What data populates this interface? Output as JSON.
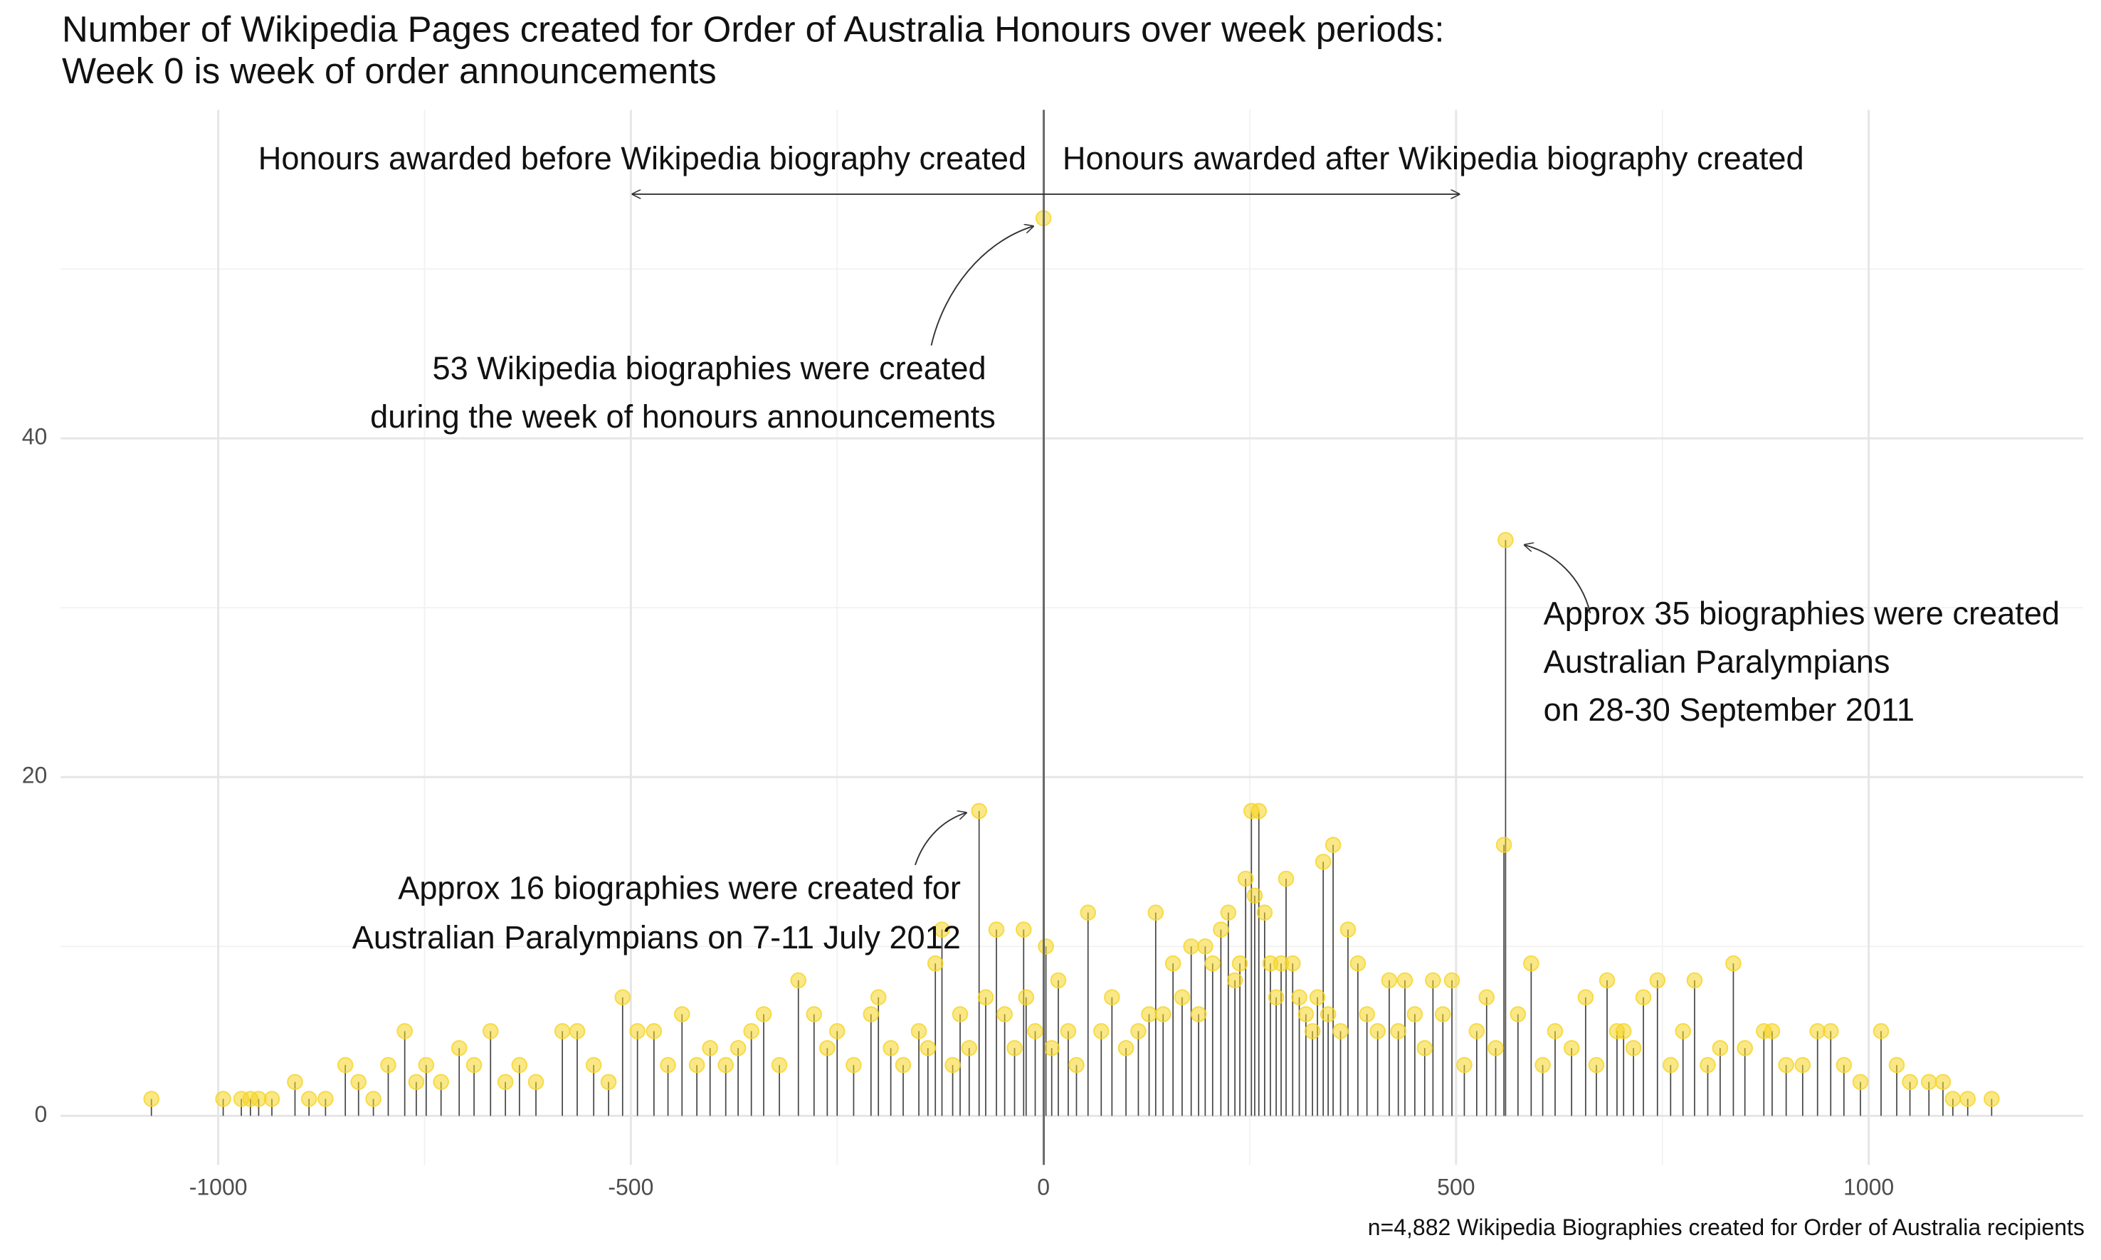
{
  "chart_data": {
    "type": "lollipop",
    "title": [
      "Number of Wikipedia Pages created for Order of Australia Honours over week periods:",
      "Week 0 is week of order announcements"
    ],
    "caption": "n=4,882 Wikipedia Biographies created for Order of Australia recipients",
    "annotations": [
      [
        "Honours awarded before Wikipedia biography created"
      ],
      [
        "Honours awarded after Wikipedia biography created"
      ],
      [
        "53 Wikipedia biographies were created",
        "during the week of honours announcements"
      ],
      [
        "Approx 35 biographies were created",
        "Australian Paralympians",
        "on 28-30 September 2011"
      ],
      [
        "Approx 16 biographies were created for",
        "Australian Paralympians on 7-11 July 2012"
      ]
    ],
    "point_color": "#f5d422",
    "stem_color": "#444444",
    "x": [
      -1081,
      -994,
      -972,
      -961,
      -951,
      -935,
      -907,
      -890,
      -870,
      -846,
      -830,
      -812,
      -794,
      -774,
      -760,
      -748,
      -730,
      -708,
      -690,
      -670,
      -652,
      -635,
      -615,
      -583,
      -565,
      -545,
      -527,
      -510,
      -492,
      -472,
      -455,
      -438,
      -420,
      -404,
      -385,
      -370,
      -354,
      -339,
      -320,
      -297,
      -278,
      -262,
      -250,
      -230,
      -209,
      -200,
      -185,
      -170,
      -151,
      -140,
      -131,
      -123,
      -110,
      -101,
      -90,
      -78,
      -70,
      -57,
      -47,
      -35,
      -24,
      -21,
      -10,
      0,
      3,
      10,
      18,
      30,
      40,
      54,
      70,
      83,
      100,
      115,
      128,
      136,
      145,
      157,
      168,
      179,
      188,
      196,
      205,
      215,
      224,
      232,
      238,
      245,
      252,
      256,
      261,
      268,
      275,
      282,
      288,
      294,
      302,
      310,
      318,
      326,
      332,
      339,
      345,
      351,
      360,
      369,
      381,
      392,
      405,
      419,
      430,
      438,
      450,
      462,
      472,
      484,
      495,
      510,
      525,
      537,
      548,
      558,
      560,
      575,
      591,
      605,
      620,
      640,
      657,
      670,
      683,
      695,
      703,
      715,
      727,
      744,
      760,
      775,
      789,
      805,
      820,
      836,
      850,
      873,
      883,
      900,
      920,
      938,
      954,
      970,
      990,
      1015,
      1034,
      1050,
      1073,
      1090,
      1102,
      1120,
      1149
    ],
    "values": [
      1,
      1,
      1,
      1,
      1,
      1,
      2,
      1,
      1,
      3,
      2,
      1,
      3,
      5,
      2,
      3,
      2,
      4,
      3,
      5,
      2,
      3,
      2,
      5,
      5,
      3,
      2,
      7,
      5,
      5,
      3,
      6,
      3,
      4,
      3,
      4,
      5,
      6,
      3,
      8,
      6,
      4,
      5,
      3,
      6,
      7,
      4,
      3,
      5,
      4,
      9,
      11,
      3,
      6,
      4,
      18,
      7,
      11,
      6,
      4,
      11,
      7,
      5,
      53,
      10,
      4,
      8,
      5,
      3,
      12,
      5,
      7,
      4,
      5,
      6,
      12,
      6,
      9,
      7,
      10,
      6,
      10,
      9,
      11,
      12,
      8,
      9,
      14,
      18,
      13,
      18,
      12,
      9,
      7,
      9,
      14,
      9,
      7,
      6,
      5,
      7,
      15,
      6,
      16,
      5,
      11,
      9,
      6,
      5,
      8,
      5,
      8,
      6,
      4,
      8,
      6,
      8,
      3,
      5,
      7,
      4,
      16,
      34,
      6,
      9,
      3,
      5,
      4,
      7,
      3,
      8,
      5,
      5,
      4,
      7,
      8,
      3,
      5,
      8,
      3,
      4,
      9,
      4,
      5,
      5,
      3,
      3,
      5,
      5,
      3,
      2,
      5,
      3,
      2,
      2,
      2,
      1,
      1,
      1
    ],
    "xlim": [
      -1191,
      1260
    ],
    "ylim": [
      -2.9,
      59.4
    ],
    "xticks": [
      -1000,
      -500,
      0,
      500,
      1000
    ],
    "yticks": [
      0,
      20,
      40
    ],
    "xminorticks": [
      -750,
      -250,
      250,
      750
    ],
    "yminorticks": [
      10,
      30,
      50
    ],
    "grid": true
  }
}
